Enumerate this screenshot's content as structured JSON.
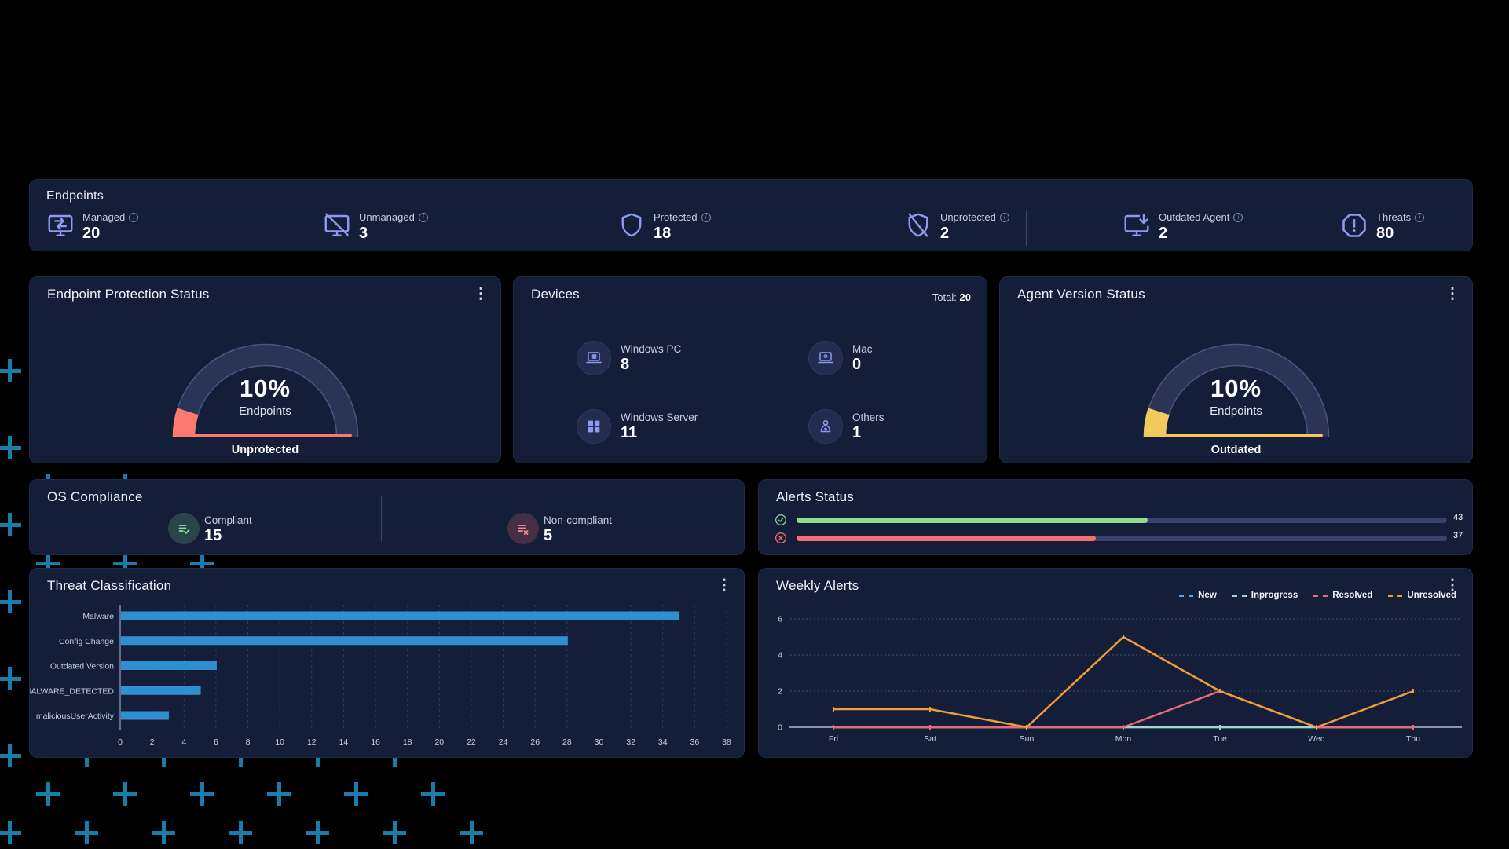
{
  "endpoints_bar": {
    "title": "Endpoints",
    "info_icon": "i",
    "stats": [
      {
        "label": "Managed",
        "value": "20",
        "icon": "managed-monitor-icon"
      },
      {
        "label": "Unmanaged",
        "value": "3",
        "icon": "unmanaged-monitor-icon"
      },
      {
        "label": "Protected",
        "value": "18",
        "icon": "protected-shield-icon"
      },
      {
        "label": "Unprotected",
        "value": "2",
        "icon": "unprotected-shield-icon"
      },
      {
        "label": "Outdated Agent",
        "value": "2",
        "icon": "outdated-agent-monitor-icon"
      },
      {
        "label": "Threats",
        "value": "80",
        "icon": "threats-octagon-alert-icon"
      }
    ]
  },
  "endpoint_protection": {
    "title": "Endpoint Protection Status",
    "menu_icon": "⋮",
    "gauge": {
      "percent": 10,
      "percent_label": "10%",
      "center_label": "Endpoints",
      "status": "Unprotected",
      "accent_color": "#f97b70",
      "track_color": "#2b3457"
    }
  },
  "devices": {
    "title": "Devices",
    "total_label": "Total:",
    "total_value": "20",
    "items": [
      {
        "label": "Windows PC",
        "value": "8",
        "icon": "windows-pc-laptop-icon"
      },
      {
        "label": "Mac",
        "value": "0",
        "icon": "mac-laptop-icon"
      },
      {
        "label": "Windows Server",
        "value": "11",
        "icon": "windows-server-grid-icon"
      },
      {
        "label": "Others",
        "value": "1",
        "icon": "others-device-icon"
      }
    ]
  },
  "agent_version": {
    "title": "Agent Version Status",
    "menu_icon": "⋮",
    "gauge": {
      "percent": 10,
      "percent_label": "10%",
      "center_label": "Endpoints",
      "status": "Outdated",
      "accent_color": "#f2c95c",
      "track_color": "#2b3457"
    }
  },
  "os_compliance": {
    "title": "OS Compliance",
    "items": [
      {
        "label": "Compliant",
        "value": "15",
        "icon": "compliant-list-check-icon",
        "color": "#8fdfa0",
        "bg": "rgba(120,210,140,0.22)"
      },
      {
        "label": "Non-compliant",
        "value": "5",
        "icon": "noncompliant-list-x-icon",
        "color": "#f58a93",
        "bg": "rgba(245,110,120,0.22)"
      }
    ]
  },
  "alerts_status": {
    "title": "Alerts Status",
    "track_color": "#38436b",
    "rows": [
      {
        "icon": "success-circle-check-icon",
        "value": "43",
        "fill_pct": 54,
        "color": "#8fdd90"
      },
      {
        "icon": "error-circle-x-icon",
        "value": "37",
        "fill_pct": 46,
        "color": "#f76e6e"
      }
    ]
  },
  "chart_data": [
    {
      "type": "bar",
      "orientation": "horizontal",
      "title": "Threat Classification",
      "menu_icon": "⋮",
      "categories": [
        "Malware",
        "Config Change",
        "Outdated Version",
        "MALWARE_DETECTED",
        "maliciousUserActivity"
      ],
      "values": [
        35,
        28,
        6,
        5,
        3
      ],
      "xlim": [
        0,
        38
      ],
      "x_tick_step": 2,
      "bar_color": "#2f8fd2",
      "grid": "dashed-vertical",
      "xlabel": "",
      "ylabel": ""
    },
    {
      "type": "line",
      "title": "Weekly Alerts",
      "menu_icon": "⋮",
      "x": [
        "Fri",
        "Sat",
        "Sun",
        "Mon",
        "Tue",
        "Wed",
        "Thu"
      ],
      "series": [
        {
          "name": "New",
          "color": "#57a8e8",
          "values": [
            0,
            0,
            0,
            0,
            0,
            0,
            0
          ]
        },
        {
          "name": "Inprogress",
          "color": "#9fd6c9",
          "values": [
            0,
            0,
            0,
            0,
            0,
            0,
            0
          ]
        },
        {
          "name": "Resolved",
          "color": "#e8687c",
          "values": [
            0,
            0,
            0,
            0,
            2,
            0,
            0
          ]
        },
        {
          "name": "Unresolved",
          "color": "#f09d38",
          "values": [
            1,
            1,
            0,
            5,
            2,
            0,
            2
          ]
        }
      ],
      "ylim": [
        0,
        6
      ],
      "yticks": [
        0,
        2,
        4,
        6
      ],
      "grid": "dotted-horizontal",
      "legend_position": "top-right"
    }
  ],
  "decor": {
    "plus_color": "#1a7ca8",
    "pattern": "teal-plus-lattice-bottom-left"
  }
}
